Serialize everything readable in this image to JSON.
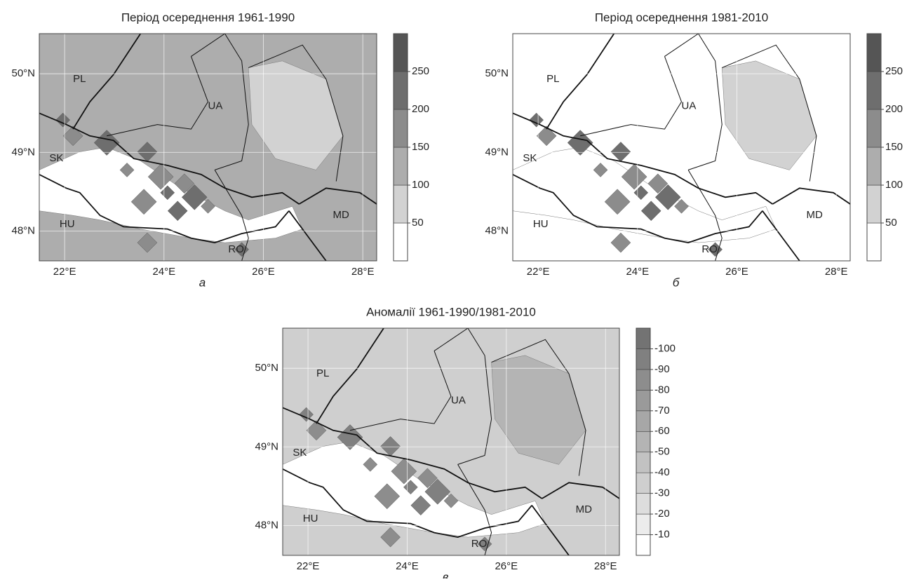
{
  "panels": [
    {
      "title": "Період осереднення 1961-1990",
      "letter": "а",
      "xlim": [
        21.49,
        28.28
      ],
      "ylim": [
        47.62,
        50.51
      ],
      "xticks": [
        {
          "value": 22,
          "label": "22°E"
        },
        {
          "value": 24,
          "label": "24°E"
        },
        {
          "value": 26,
          "label": "26°E"
        },
        {
          "value": 28,
          "label": "28°E"
        }
      ],
      "yticks": [
        {
          "value": 48,
          "label": "48°N"
        },
        {
          "value": 49,
          "label": "49°N"
        },
        {
          "value": 50,
          "label": "50°N"
        }
      ],
      "countries": [
        "PL",
        "UA",
        "SK",
        "HU",
        "MD",
        "RO"
      ],
      "colorbar": {
        "lim": [
          0,
          300
        ],
        "ticks": [
          50,
          100,
          150,
          200,
          250
        ],
        "colors": [
          "#ffffff",
          "#d2d2d2",
          "#adadad",
          "#8c8c8c",
          "#6e6e6e",
          "#555555"
        ]
      }
    },
    {
      "title": "Період осереднення 1981-2010",
      "letter": "б",
      "xlim": [
        21.49,
        28.28
      ],
      "ylim": [
        47.62,
        50.51
      ],
      "xticks": [
        {
          "value": 22,
          "label": "22°E"
        },
        {
          "value": 24,
          "label": "24°E"
        },
        {
          "value": 26,
          "label": "26°E"
        },
        {
          "value": 28,
          "label": "28°E"
        }
      ],
      "yticks": [
        {
          "value": 48,
          "label": "48°N"
        },
        {
          "value": 49,
          "label": "49°N"
        },
        {
          "value": 50,
          "label": "50°N"
        }
      ],
      "countries": [
        "PL",
        "UA",
        "SK",
        "HU",
        "MD",
        "RO"
      ],
      "colorbar": {
        "lim": [
          0,
          300
        ],
        "ticks": [
          50,
          100,
          150,
          200,
          250
        ],
        "colors": [
          "#ffffff",
          "#d2d2d2",
          "#adadad",
          "#8c8c8c",
          "#6e6e6e",
          "#555555"
        ]
      }
    },
    {
      "title": "Аномалії 1961-1990/1981-2010",
      "letter": "в",
      "xlim": [
        21.49,
        28.28
      ],
      "ylim": [
        47.62,
        50.51
      ],
      "xticks": [
        {
          "value": 22,
          "label": "22°E"
        },
        {
          "value": 24,
          "label": "24°E"
        },
        {
          "value": 26,
          "label": "26°E"
        },
        {
          "value": 28,
          "label": "28°E"
        }
      ],
      "yticks": [
        {
          "value": 48,
          "label": "48°N"
        },
        {
          "value": 49,
          "label": "49°N"
        },
        {
          "value": 50,
          "label": "50°N"
        }
      ],
      "countries": [
        "PL",
        "UA",
        "SK",
        "HU",
        "MD",
        "RO"
      ],
      "colorbar": {
        "lim": [
          0,
          -110
        ],
        "ticks": [
          -10,
          -20,
          -30,
          -40,
          -50,
          -60,
          -70,
          -80,
          -90,
          -100
        ],
        "colors": [
          "#ffffff",
          "#ececec",
          "#dddddd",
          "#cfcfcf",
          "#c2c2c2",
          "#b4b4b4",
          "#a7a7a7",
          "#9a9a9a",
          "#8d8d8d",
          "#808080",
          "#737373"
        ]
      }
    }
  ]
}
